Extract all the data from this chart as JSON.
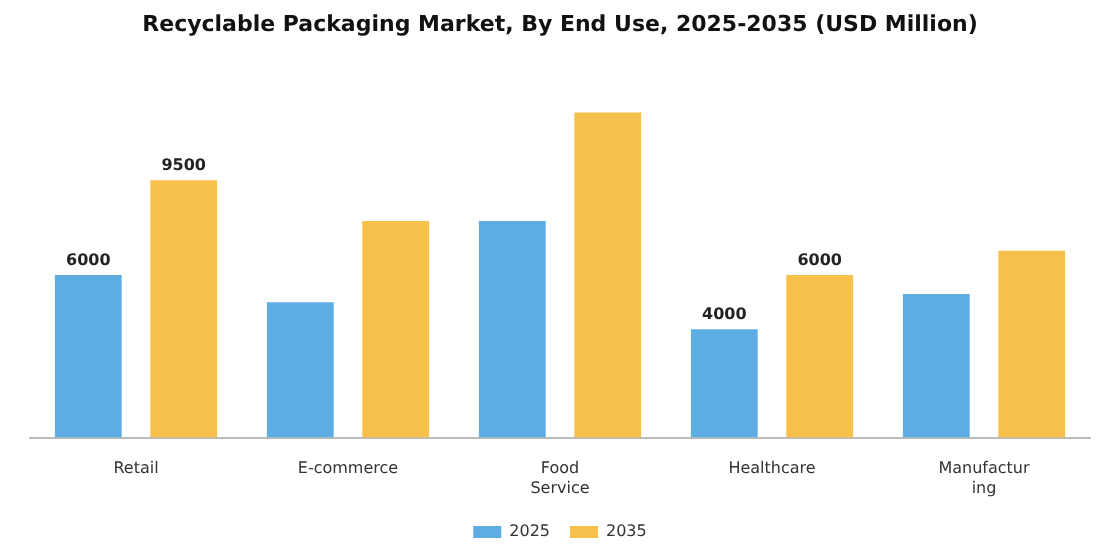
{
  "chart_data": {
    "type": "bar",
    "title": "Recyclable Packaging Market, By End Use, 2025-2035 (USD Million)",
    "categories": [
      "Retail",
      "E-commerce",
      "Food Service",
      "Healthcare",
      "Manufacturing"
    ],
    "series": [
      {
        "name": "2025",
        "color": "#5dade2",
        "values": [
          6000,
          5000,
          8000,
          4000,
          5300
        ],
        "value_labels": [
          "6000",
          null,
          null,
          "4000",
          null
        ]
      },
      {
        "name": "2035",
        "color": "#f7c04a",
        "values": [
          9500,
          8000,
          12000,
          6000,
          6900
        ],
        "value_labels": [
          "9500",
          null,
          null,
          "6000",
          null
        ]
      }
    ],
    "legend": "bottom",
    "grid": false
  }
}
